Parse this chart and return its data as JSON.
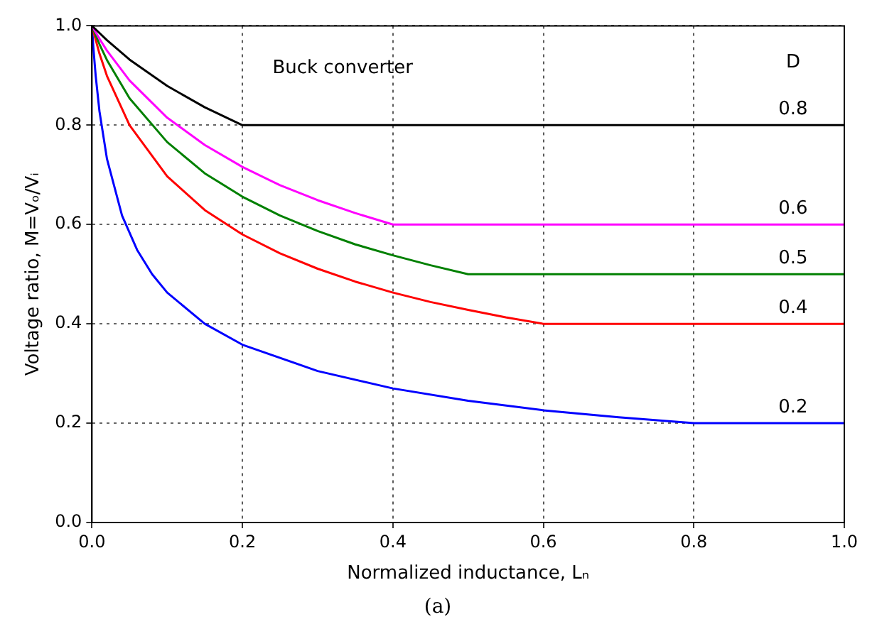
{
  "chart_data": {
    "type": "line",
    "xlabel": "Normalized inductance, Lₙ",
    "ylabel": "Voltage ratio, M=Vₒ/Vᵢ",
    "xlim": [
      0,
      1
    ],
    "ylim": [
      0,
      1
    ],
    "xticks": [
      {
        "value": 0,
        "label": "0.0"
      },
      0.2,
      0.4,
      0.6,
      0.8,
      {
        "value": 1,
        "label": "1.0"
      }
    ],
    "yticks": [
      {
        "value": 0,
        "label": "0.0"
      },
      0.2,
      0.4,
      0.6,
      0.8,
      {
        "value": 1,
        "label": "1.0"
      }
    ],
    "grid": true,
    "legend": false,
    "marker": "none",
    "line_style": "solid",
    "annotations": [
      "Buck converter",
      "D",
      "(a)"
    ],
    "series": [
      {
        "name": "0.8",
        "color": "#000000",
        "x": [
          0,
          0.02,
          0.05,
          0.1,
          0.15,
          0.2,
          1.0
        ],
        "values": [
          1,
          0.971,
          0.932,
          0.879,
          0.836,
          0.8,
          0.8
        ]
      },
      {
        "name": "0.6",
        "color": "#ff00ff",
        "x": [
          0,
          0.01,
          0.02,
          0.05,
          0.1,
          0.15,
          0.2,
          0.25,
          0.3,
          0.35,
          0.4,
          1.0
        ],
        "values": [
          1,
          0.974,
          0.95,
          0.89,
          0.815,
          0.76,
          0.716,
          0.679,
          0.649,
          0.623,
          0.6,
          0.6
        ]
      },
      {
        "name": "0.5",
        "color": "#008000",
        "x": [
          0,
          0.01,
          0.02,
          0.05,
          0.1,
          0.15,
          0.2,
          0.25,
          0.3,
          0.35,
          0.4,
          0.45,
          0.5,
          1.0
        ],
        "values": [
          1,
          0.963,
          0.931,
          0.854,
          0.766,
          0.703,
          0.656,
          0.618,
          0.587,
          0.56,
          0.538,
          0.518,
          0.5,
          0.5
        ]
      },
      {
        "name": "0.4",
        "color": "#ff0000",
        "x": [
          0,
          0.01,
          0.02,
          0.05,
          0.1,
          0.15,
          0.2,
          0.25,
          0.3,
          0.35,
          0.4,
          0.45,
          0.5,
          0.55,
          0.6,
          1.0
        ],
        "values": [
          1,
          0.944,
          0.899,
          0.8,
          0.697,
          0.629,
          0.58,
          0.542,
          0.511,
          0.485,
          0.463,
          0.444,
          0.428,
          0.413,
          0.4,
          0.4
        ]
      },
      {
        "name": "0.2",
        "color": "#0000ff",
        "x": [
          0,
          0.002,
          0.005,
          0.01,
          0.02,
          0.04,
          0.06,
          0.08,
          0.1,
          0.15,
          0.2,
          0.3,
          0.4,
          0.5,
          0.6,
          0.7,
          0.8,
          1.0
        ],
        "values": [
          1,
          0.954,
          0.899,
          0.828,
          0.732,
          0.618,
          0.549,
          0.5,
          0.463,
          0.4,
          0.358,
          0.305,
          0.27,
          0.245,
          0.226,
          0.212,
          0.2,
          0.2
        ]
      }
    ]
  }
}
